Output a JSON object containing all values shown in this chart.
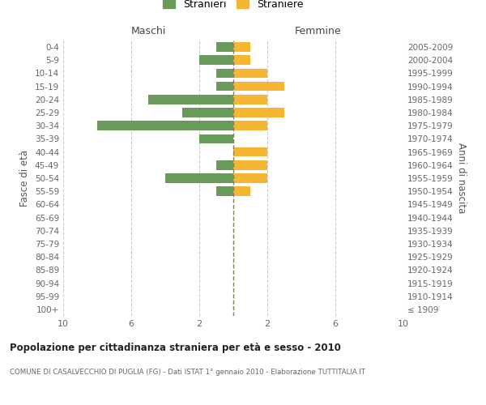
{
  "age_groups": [
    "100+",
    "95-99",
    "90-94",
    "85-89",
    "80-84",
    "75-79",
    "70-74",
    "65-69",
    "60-64",
    "55-59",
    "50-54",
    "45-49",
    "40-44",
    "35-39",
    "30-34",
    "25-29",
    "20-24",
    "15-19",
    "10-14",
    "5-9",
    "0-4"
  ],
  "birth_years": [
    "≤ 1909",
    "1910-1914",
    "1915-1919",
    "1920-1924",
    "1925-1929",
    "1930-1934",
    "1935-1939",
    "1940-1944",
    "1945-1949",
    "1950-1954",
    "1955-1959",
    "1960-1964",
    "1965-1969",
    "1970-1974",
    "1975-1979",
    "1980-1984",
    "1985-1989",
    "1990-1994",
    "1995-1999",
    "2000-2004",
    "2005-2009"
  ],
  "maschi": [
    0,
    0,
    0,
    0,
    0,
    0,
    0,
    0,
    0,
    1,
    4,
    1,
    0,
    2,
    8,
    3,
    5,
    1,
    1,
    2,
    1
  ],
  "femmine": [
    0,
    0,
    0,
    0,
    0,
    0,
    0,
    0,
    0,
    1,
    2,
    2,
    2,
    0,
    2,
    3,
    2,
    3,
    2,
    1,
    1
  ],
  "color_maschi": "#6a9a5b",
  "color_femmine": "#f5b731",
  "title": "Popolazione per cittadinanza straniera per età e sesso - 2010",
  "subtitle": "COMUNE DI CASALVECCHIO DI PUGLIA (FG) - Dati ISTAT 1° gennaio 2010 - Elaborazione TUTTITALIA.IT",
  "ylabel_left": "Fasce di età",
  "ylabel_right": "Anni di nascita",
  "legend_maschi": "Stranieri",
  "legend_femmine": "Straniere",
  "header_maschi": "Maschi",
  "header_femmine": "Femmine",
  "xlim": 10,
  "background_color": "#ffffff",
  "grid_color": "#cccccc",
  "dashed_line_color": "#808060"
}
